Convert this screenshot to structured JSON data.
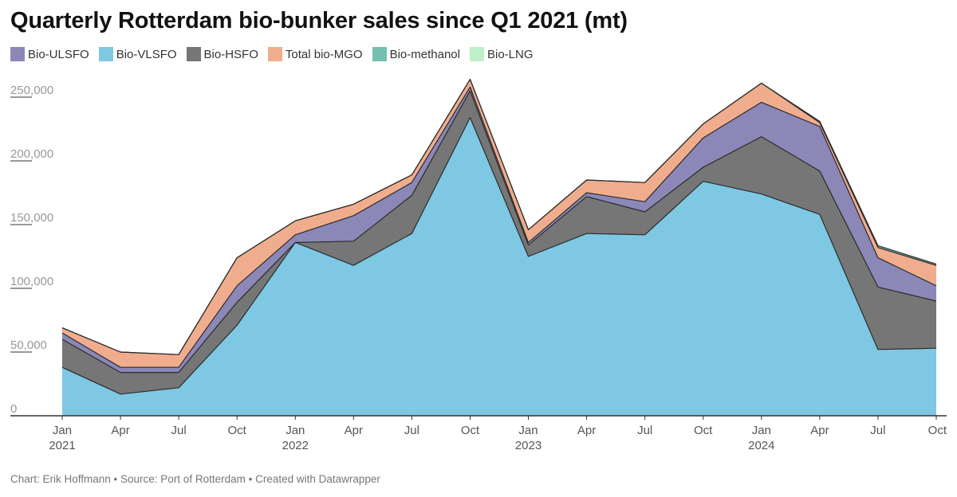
{
  "title": "Quarterly Rotterdam bio-bunker sales since Q1 2021 (mt)",
  "footer": "Chart: Erik Hoffmann • Source: Port of Rotterdam • Created with Datawrapper",
  "chart_data": {
    "type": "area",
    "stacked": true,
    "title": "Quarterly Rotterdam bio-bunker sales since Q1 2021 (mt)",
    "xlabel": "",
    "ylabel": "",
    "ylim": [
      0,
      260000
    ],
    "yticks": [
      0,
      50000,
      100000,
      150000,
      200000,
      250000
    ],
    "ytick_labels": [
      "0",
      "50,000",
      "100,000",
      "150,000",
      "200,000",
      "250,000"
    ],
    "grid": false,
    "legend_position": "top-left",
    "categories": [
      "Q1 2021",
      "Q2 2021",
      "Q3 2021",
      "Q4 2021",
      "Q1 2022",
      "Q2 2022",
      "Q3 2022",
      "Q4 2022",
      "Q1 2023",
      "Q2 2023",
      "Q3 2023",
      "Q4 2023",
      "Q1 2024",
      "Q2 2024",
      "Q3 2024",
      "Q4 2024"
    ],
    "xtick_labels": [
      {
        "month": "Jan",
        "year": "2021"
      },
      {
        "month": "Apr",
        "year": ""
      },
      {
        "month": "Jul",
        "year": ""
      },
      {
        "month": "Oct",
        "year": ""
      },
      {
        "month": "Jan",
        "year": "2022"
      },
      {
        "month": "Apr",
        "year": ""
      },
      {
        "month": "Jul",
        "year": ""
      },
      {
        "month": "Oct",
        "year": ""
      },
      {
        "month": "Jan",
        "year": "2023"
      },
      {
        "month": "Apr",
        "year": ""
      },
      {
        "month": "Jul",
        "year": ""
      },
      {
        "month": "Oct",
        "year": ""
      },
      {
        "month": "Jan",
        "year": "2024"
      },
      {
        "month": "Apr",
        "year": ""
      },
      {
        "month": "Jul",
        "year": ""
      },
      {
        "month": "Oct",
        "year": ""
      }
    ],
    "series": [
      {
        "name": "Bio-VLSFO",
        "color": "#7ec8e3",
        "values": [
          38000,
          17000,
          22000,
          71000,
          136000,
          118000,
          143000,
          234000,
          125000,
          143000,
          142000,
          184000,
          174000,
          158000,
          52000,
          53000
        ]
      },
      {
        "name": "Bio-HSFO",
        "color": "#767676",
        "values": [
          22000,
          17000,
          12000,
          18000,
          0,
          19000,
          30000,
          21000,
          9000,
          29000,
          18000,
          11000,
          45000,
          34000,
          49000,
          37000
        ]
      },
      {
        "name": "Bio-ULSFO",
        "color": "#8b88b8",
        "values": [
          5000,
          4000,
          4000,
          13000,
          6000,
          20000,
          10000,
          3000,
          2000,
          3000,
          8000,
          23000,
          27000,
          35000,
          23000,
          12000
        ]
      },
      {
        "name": "Total bio-MGO",
        "color": "#f0ad8d",
        "values": [
          4000,
          12000,
          10000,
          22000,
          11000,
          9000,
          6000,
          6000,
          10000,
          10000,
          15000,
          11000,
          15000,
          3000,
          8000,
          16000
        ]
      },
      {
        "name": "Bio-methanol",
        "color": "#72c0ad",
        "values": [
          0,
          0,
          0,
          0,
          0,
          0,
          0,
          0,
          0,
          0,
          0,
          0,
          0,
          1000,
          1500,
          1000
        ]
      },
      {
        "name": "Bio-LNG",
        "color": "#bfefc8",
        "values": [
          0,
          0,
          0,
          0,
          0,
          0,
          0,
          0,
          0,
          0,
          0,
          0,
          0,
          0,
          0,
          0
        ]
      }
    ]
  }
}
